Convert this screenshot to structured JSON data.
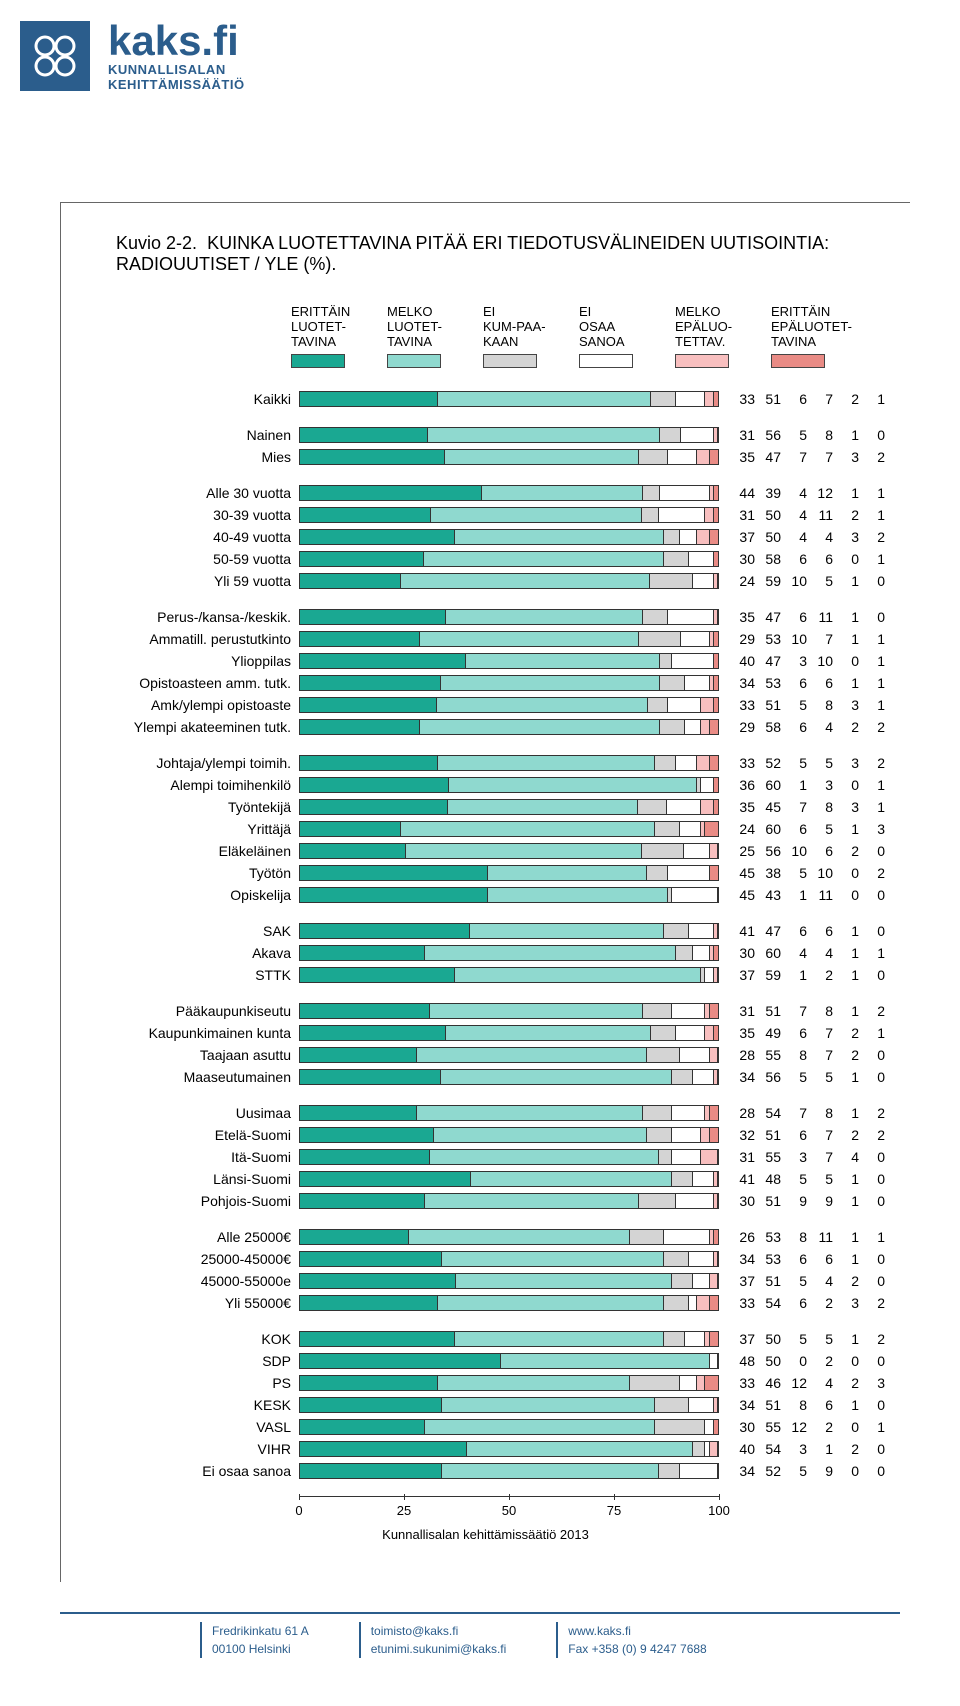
{
  "brand": {
    "name": "kaks.fi",
    "subtitle1": "KUNNALLISALAN",
    "subtitle2": "KEHITTÄMISSÄÄTIÖ"
  },
  "chart": {
    "figure_no": "Kuvio 2-2.",
    "title": "KUINKA LUOTETTAVINA PITÄÄ ERI TIEDOTUSVÄLINEIDEN UUTISOINTIA: RADIOUUTISET / YLE (%).",
    "caption": "Kunnallisalan kehittämissäätiö 2013",
    "colors": [
      "#1aa892",
      "#8fd9cf",
      "#d4d4d4",
      "#ffffff",
      "#f8bfbf",
      "#e98b85"
    ],
    "legend": [
      "ERITTÄIN LUOTET-TAVINA",
      "MELKO LUOTET-TAVINA",
      "EI KUM-PAA-KAAN",
      "EI OSAA SANOA",
      "MELKO EPÄLUO-TETTAV.",
      "ERITTÄIN EPÄLUOTET-TAVINA"
    ],
    "xticks": [
      0,
      25,
      50,
      75,
      100
    ],
    "groups": [
      [
        {
          "label": "Kaikki",
          "v": [
            33,
            51,
            6,
            7,
            2,
            1
          ]
        }
      ],
      [
        {
          "label": "Nainen",
          "v": [
            31,
            56,
            5,
            8,
            1,
            0
          ]
        },
        {
          "label": "Mies",
          "v": [
            35,
            47,
            7,
            7,
            3,
            2
          ]
        }
      ],
      [
        {
          "label": "Alle 30 vuotta",
          "v": [
            44,
            39,
            4,
            12,
            1,
            1
          ]
        },
        {
          "label": "30-39 vuotta",
          "v": [
            31,
            50,
            4,
            11,
            2,
            1
          ]
        },
        {
          "label": "40-49 vuotta",
          "v": [
            37,
            50,
            4,
            4,
            3,
            2
          ]
        },
        {
          "label": "50-59 vuotta",
          "v": [
            30,
            58,
            6,
            6,
            0,
            1
          ]
        },
        {
          "label": "Yli 59 vuotta",
          "v": [
            24,
            59,
            10,
            5,
            1,
            0
          ]
        }
      ],
      [
        {
          "label": "Perus-/kansa-/keskik.",
          "v": [
            35,
            47,
            6,
            11,
            1,
            0
          ]
        },
        {
          "label": "Ammatill. perustutkinto",
          "v": [
            29,
            53,
            10,
            7,
            1,
            1
          ]
        },
        {
          "label": "Ylioppilas",
          "v": [
            40,
            47,
            3,
            10,
            0,
            1
          ]
        },
        {
          "label": "Opistoasteen amm. tutk.",
          "v": [
            34,
            53,
            6,
            6,
            1,
            1
          ]
        },
        {
          "label": "Amk/ylempi opistoaste",
          "v": [
            33,
            51,
            5,
            8,
            3,
            1
          ]
        },
        {
          "label": "Ylempi akateeminen tutk.",
          "v": [
            29,
            58,
            6,
            4,
            2,
            2
          ]
        }
      ],
      [
        {
          "label": "Johtaja/ylempi toimih.",
          "v": [
            33,
            52,
            5,
            5,
            3,
            2
          ]
        },
        {
          "label": "Alempi toimihenkilö",
          "v": [
            36,
            60,
            1,
            3,
            0,
            1
          ]
        },
        {
          "label": "Työntekijä",
          "v": [
            35,
            45,
            7,
            8,
            3,
            1
          ]
        },
        {
          "label": "Yrittäjä",
          "v": [
            24,
            60,
            6,
            5,
            1,
            3
          ]
        },
        {
          "label": "Eläkeläinen",
          "v": [
            25,
            56,
            10,
            6,
            2,
            0
          ]
        },
        {
          "label": "Työtön",
          "v": [
            45,
            38,
            5,
            10,
            0,
            2
          ]
        },
        {
          "label": "Opiskelija",
          "v": [
            45,
            43,
            1,
            11,
            0,
            0
          ]
        }
      ],
      [
        {
          "label": "SAK",
          "v": [
            41,
            47,
            6,
            6,
            1,
            0
          ]
        },
        {
          "label": "Akava",
          "v": [
            30,
            60,
            4,
            4,
            1,
            1
          ]
        },
        {
          "label": "STTK",
          "v": [
            37,
            59,
            1,
            2,
            1,
            0
          ]
        }
      ],
      [
        {
          "label": "Pääkaupunkiseutu",
          "v": [
            31,
            51,
            7,
            8,
            1,
            2
          ]
        },
        {
          "label": "Kaupunkimainen kunta",
          "v": [
            35,
            49,
            6,
            7,
            2,
            1
          ]
        },
        {
          "label": "Taajaan asuttu",
          "v": [
            28,
            55,
            8,
            7,
            2,
            0
          ]
        },
        {
          "label": "Maaseutumainen",
          "v": [
            34,
            56,
            5,
            5,
            1,
            0
          ]
        }
      ],
      [
        {
          "label": "Uusimaa",
          "v": [
            28,
            54,
            7,
            8,
            1,
            2
          ]
        },
        {
          "label": "Etelä-Suomi",
          "v": [
            32,
            51,
            6,
            7,
            2,
            2
          ]
        },
        {
          "label": "Itä-Suomi",
          "v": [
            31,
            55,
            3,
            7,
            4,
            0
          ]
        },
        {
          "label": "Länsi-Suomi",
          "v": [
            41,
            48,
            5,
            5,
            1,
            0
          ]
        },
        {
          "label": "Pohjois-Suomi",
          "v": [
            30,
            51,
            9,
            9,
            1,
            0
          ]
        }
      ],
      [
        {
          "label": "Alle 25000€",
          "v": [
            26,
            53,
            8,
            11,
            1,
            1
          ]
        },
        {
          "label": "25000-45000€",
          "v": [
            34,
            53,
            6,
            6,
            1,
            0
          ]
        },
        {
          "label": "45000-55000e",
          "v": [
            37,
            51,
            5,
            4,
            2,
            0
          ]
        },
        {
          "label": "Yli 55000€",
          "v": [
            33,
            54,
            6,
            2,
            3,
            2
          ]
        }
      ],
      [
        {
          "label": "KOK",
          "v": [
            37,
            50,
            5,
            5,
            1,
            2
          ]
        },
        {
          "label": "SDP",
          "v": [
            48,
            50,
            0,
            2,
            0,
            0
          ]
        },
        {
          "label": "PS",
          "v": [
            33,
            46,
            12,
            4,
            2,
            3
          ]
        },
        {
          "label": "KESK",
          "v": [
            34,
            51,
            8,
            6,
            1,
            0
          ]
        },
        {
          "label": "VASL",
          "v": [
            30,
            55,
            12,
            2,
            0,
            1
          ]
        },
        {
          "label": "VIHR",
          "v": [
            40,
            54,
            3,
            1,
            2,
            0
          ]
        },
        {
          "label": "Ei osaa sanoa",
          "v": [
            34,
            52,
            5,
            9,
            0,
            0
          ]
        }
      ]
    ]
  },
  "footer": {
    "col1a": "Fredrikinkatu 61 A",
    "col1b": "00100 Helsinki",
    "col2a": "toimisto@kaks.fi",
    "col2b": "etunimi.sukunimi@kaks.fi",
    "col3a": "www.kaks.fi",
    "col3b": "Fax +358 (0) 9 4247 7688"
  }
}
